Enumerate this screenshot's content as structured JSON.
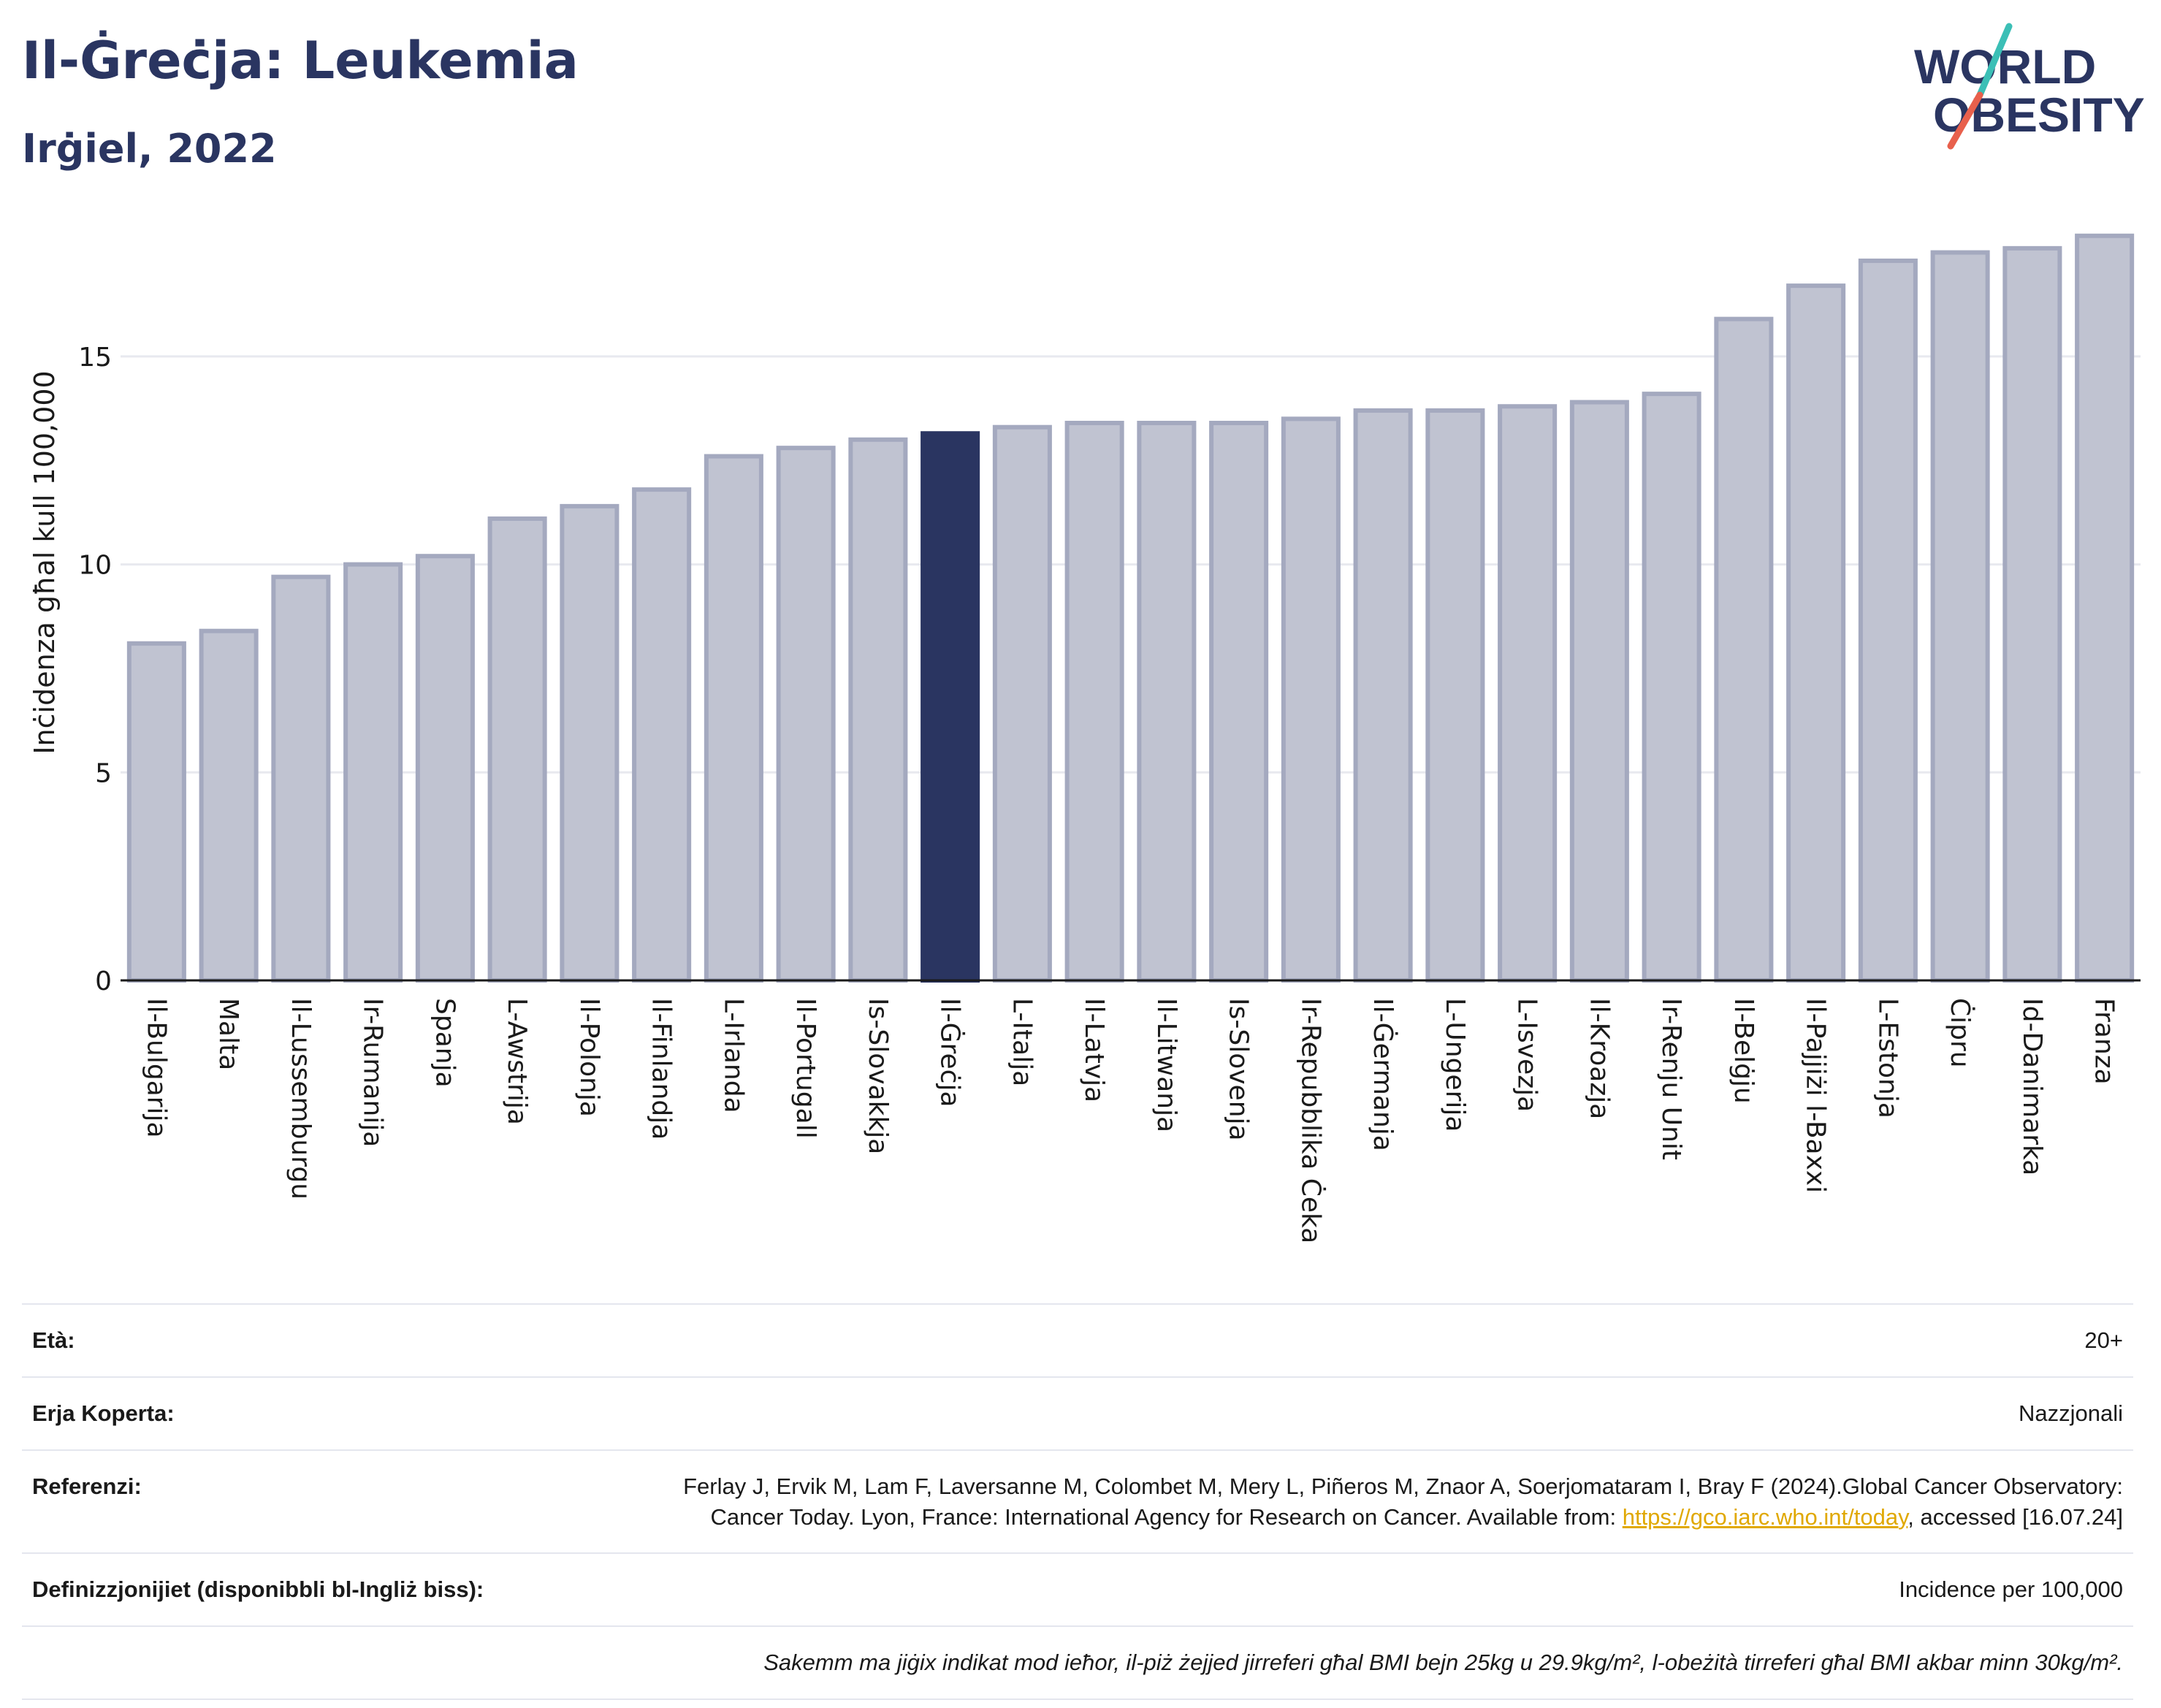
{
  "header": {
    "title": "Il-Ġreċja: Leukemia",
    "subtitle": "Irġiel, 2022"
  },
  "logo": {
    "line1": "WORLD",
    "line2": "OBESITY",
    "colors": {
      "text": "#2a3561",
      "slash_red": "#e8604c",
      "slash_teal": "#3bbfb6"
    }
  },
  "colors": {
    "highlight": "#2a3561",
    "bar_fill": "#c0c3d1",
    "bar_stroke": "#a4a9bf",
    "grid": "#e8e9ef",
    "link": "#e0a800"
  },
  "chart_data": {
    "type": "bar",
    "ylabel": "Inċidenza għal kull 100,000",
    "ylim": [
      0,
      18.3
    ],
    "yticks": [
      0,
      5,
      10,
      15
    ],
    "grid": "horizontal",
    "highlight_category": "Il-Ġreċja",
    "categories": [
      "Il-Bulgarija",
      "Malta",
      "Il-Lussemburgu",
      "Ir-Rumanija",
      "Spanja",
      "L-Awstrija",
      "Il-Polonja",
      "Il-Finlandja",
      "L-Irlanda",
      "Il-Portugall",
      "Is-Slovakkja",
      "Il-Ġreċja",
      "L-Italja",
      "Il-Latvja",
      "Il-Litwanja",
      "Is-Slovenja",
      "Ir-Repubblika Ċeka",
      "Il-Ġermanja",
      "L-Ungerija",
      "L-Isvezja",
      "Il-Kroazja",
      "Ir-Renju Unit",
      "Il-Belġju",
      "Il-Pajjiżi l-Baxxi",
      "L-Estonja",
      "Ċipru",
      "Id-Danimarka",
      "Franza"
    ],
    "values": [
      8.1,
      8.4,
      9.7,
      10.0,
      10.2,
      11.1,
      11.4,
      11.8,
      12.6,
      12.8,
      13.0,
      13.15,
      13.3,
      13.4,
      13.4,
      13.4,
      13.5,
      13.7,
      13.7,
      13.8,
      13.9,
      14.1,
      15.9,
      16.7,
      17.3,
      17.5,
      17.6,
      17.9
    ]
  },
  "info": {
    "age_label": "Età:",
    "age_value": "20+",
    "area_label": "Erja Koperta:",
    "area_value": "Nazzjonali",
    "ref_label": "Referenzi:",
    "ref_text_1": "Ferlay J, Ervik M, Lam F, Laversanne M, Colombet M, Mery L, Piñeros M, Znaor A, Soerjomataram I, Bray F (2024).Global Cancer Observatory: Cancer Today. Lyon, France: International Agency for Research on Cancer. Available from: ",
    "ref_link": "https://gco.iarc.who.int/today",
    "ref_text_2": ", accessed [16.07.24]",
    "def_label": "Definizzjonijiet (disponibbli bl-Ingliż biss):",
    "def_value": "Incidence per 100,000",
    "note": "Sakemm ma jiġix indikat mod ieħor, il-piż żejjed jirreferi għal BMI bejn 25kg u 29.9kg/m², l-obeżità tirreferi għal BMI akbar minn 30kg/m²."
  }
}
